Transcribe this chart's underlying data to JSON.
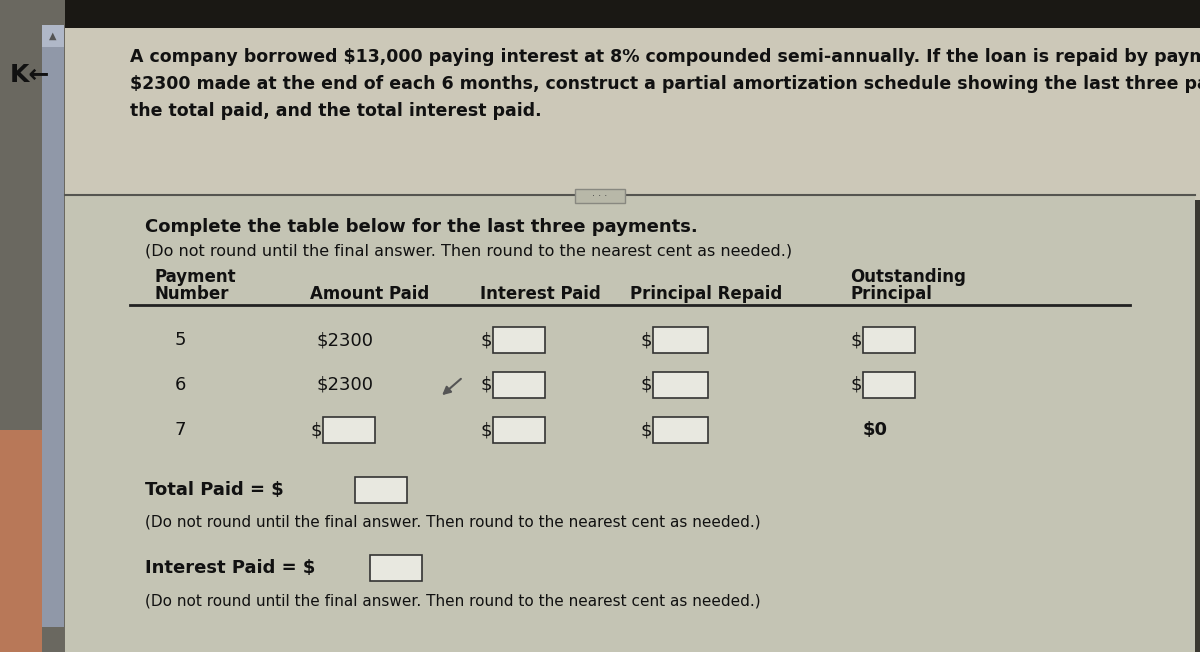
{
  "bg_top": "#3a3830",
  "bg_bottom": "#b8b8a8",
  "sidebar_color": "#8890a0",
  "sidebar_inner": "#6878888",
  "header_bg": "#c8c4b0",
  "main_bg": "#c0c0b0",
  "text_color": "#111111",
  "text_color_header": "#1a1a1a",
  "box_color": "#e8e8e0",
  "box_edge": "#333333",
  "line_color": "#222222",
  "arrow_text": "K",
  "header_line1": "A company borrowed $13,000 paying interest at 8% compounded semi-annually. If the loan is repaid by payments of",
  "header_line2": "$2300 made at the end of each 6 months, construct a partial amortization schedule showing the last three payments,",
  "header_line3": "the total paid, and the total interest paid.",
  "instr1": "Complete the table below for the last three payments.",
  "instr2": "(Do not round until the final answer. Then round to the nearest cent as needed.)",
  "col1": "Payment",
  "col1b": "Number",
  "col2": "Amount Paid",
  "col3": "Interest Paid",
  "col4": "Principal Repaid",
  "col5a": "Outstanding",
  "col5b": "Principal",
  "rows": [
    "5",
    "6",
    "7"
  ],
  "amounts": [
    "$2300",
    "$2300",
    ""
  ],
  "last_outstanding": "$0",
  "total_paid_label": "Total Paid = $",
  "total_note": "(Do not round until the final answer. Then round to the nearest cent as needed.)",
  "interest_paid_label": "Interest Paid = $",
  "interest_note": "(Do not round until the final answer. Then round to the nearest cent as needed.)"
}
